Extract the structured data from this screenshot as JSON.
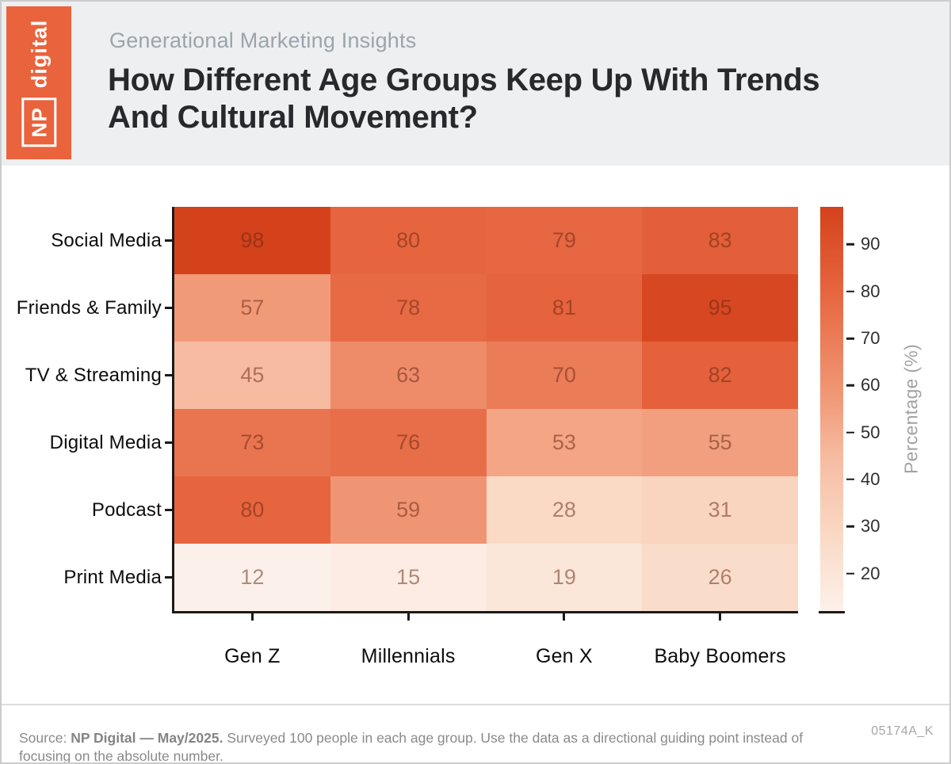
{
  "logo": {
    "np": "NP",
    "digital": "digital"
  },
  "header": {
    "eyebrow": "Generational Marketing Insights",
    "title_line1": "How Different Age Groups Keep Up With Trends",
    "title_line2": "And Cultural Movement?"
  },
  "chart_data": {
    "type": "heatmap",
    "rows": [
      "Social Media",
      "Friends & Family",
      "TV & Streaming",
      "Digital Media",
      "Podcast",
      "Print Media"
    ],
    "columns": [
      "Gen Z",
      "Millennials",
      "Gen X",
      "Baby Boomers"
    ],
    "values": [
      [
        98,
        80,
        79,
        83
      ],
      [
        57,
        78,
        81,
        95
      ],
      [
        45,
        63,
        70,
        82
      ],
      [
        73,
        76,
        53,
        55
      ],
      [
        80,
        59,
        28,
        31
      ],
      [
        12,
        15,
        19,
        26
      ]
    ],
    "vmin": 12,
    "vmax": 98,
    "colorbar": {
      "label": "Percentage (%)",
      "ticks": [
        20,
        30,
        40,
        50,
        60,
        70,
        80,
        90
      ]
    },
    "colormap_stops": [
      {
        "t": 0.0,
        "color": "#FCF1EA"
      },
      {
        "t": 0.186,
        "color": "#FAD9C5"
      },
      {
        "t": 0.384,
        "color": "#F6BBA0"
      },
      {
        "t": 0.523,
        "color": "#F19A78"
      },
      {
        "t": 0.791,
        "color": "#E6653F"
      },
      {
        "t": 1.0,
        "color": "#D4421C"
      }
    ],
    "value_text_color": "rgba(100,35,15,0.5)",
    "grid": false,
    "legend_position": "right-colorbar"
  },
  "footer": {
    "source_prefix": "Source: ",
    "source_bold": "NP Digital — May/2025.",
    "source_rest": " Surveyed 100 people in each age group. Use the data as a directional guiding point instead of focusing on the absolute number.",
    "code": "05174A_K"
  },
  "colors": {
    "brand_orange": "#E9633D",
    "header_band": "#EDEFF1",
    "title_text": "#27292C",
    "eyebrow_text": "#9CA4AC",
    "axis_spine": "#1a1a1a"
  }
}
